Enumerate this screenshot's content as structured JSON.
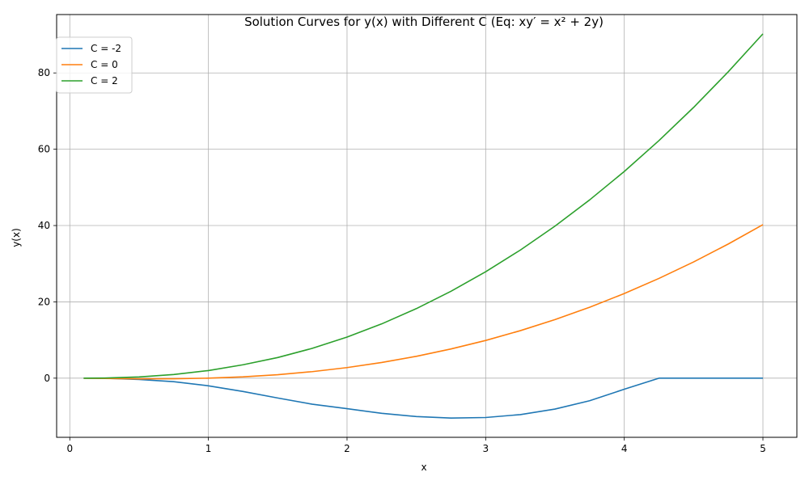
{
  "chart_data": {
    "type": "line",
    "title": "Solution Curves for y(x) with Different C (Eq: xy′ = x² + 2y)",
    "xlabel": "x",
    "ylabel": "y(x)",
    "xlim": [
      -0.095,
      5.245
    ],
    "ylim": [
      -15.5,
      95.3
    ],
    "xticks": [
      0,
      1,
      2,
      3,
      4,
      5
    ],
    "yticks": [
      0,
      20,
      40,
      60,
      80
    ],
    "grid": true,
    "legend_position": "upper-left",
    "x": [
      0.1,
      0.25,
      0.5,
      0.75,
      1.0,
      1.25,
      1.5,
      1.75,
      2.0,
      2.25,
      2.5,
      2.75,
      3.0,
      3.25,
      3.5,
      3.75,
      4.0,
      4.25,
      4.5,
      4.75,
      5.0
    ],
    "series": [
      {
        "name": "C = -2",
        "color": "#1f77b4",
        "values": [
          -0.0023,
          -0.0346,
          -0.3466,
          -0.9162,
          -2.0,
          -3.488,
          -5.2,
          -6.824,
          -8.0,
          -9.218,
          -10.06,
          -10.46,
          -10.31,
          -9.546,
          -8.103,
          -5.911,
          -2.906,
          0.0,
          0.0,
          0.0,
          0.0
        ]
      },
      {
        "name": "C = 0",
        "color": "#ff7f0e",
        "values": [
          -0.023,
          -0.087,
          -0.173,
          -0.162,
          0.0,
          0.349,
          0.912,
          1.714,
          2.773,
          4.105,
          5.727,
          7.655,
          9.887,
          12.45,
          15.35,
          18.59,
          22.18,
          26.14,
          30.46,
          35.16,
          40.24
        ]
      },
      {
        "name": "C = 2",
        "color": "#2ca02c",
        "values": [
          -0.003,
          0.038,
          0.327,
          0.963,
          2.0,
          3.518,
          5.412,
          7.825,
          10.77,
          14.23,
          18.23,
          22.78,
          27.89,
          33.57,
          39.85,
          46.72,
          54.18,
          62.27,
          70.96,
          80.29,
          90.24
        ]
      }
    ]
  }
}
